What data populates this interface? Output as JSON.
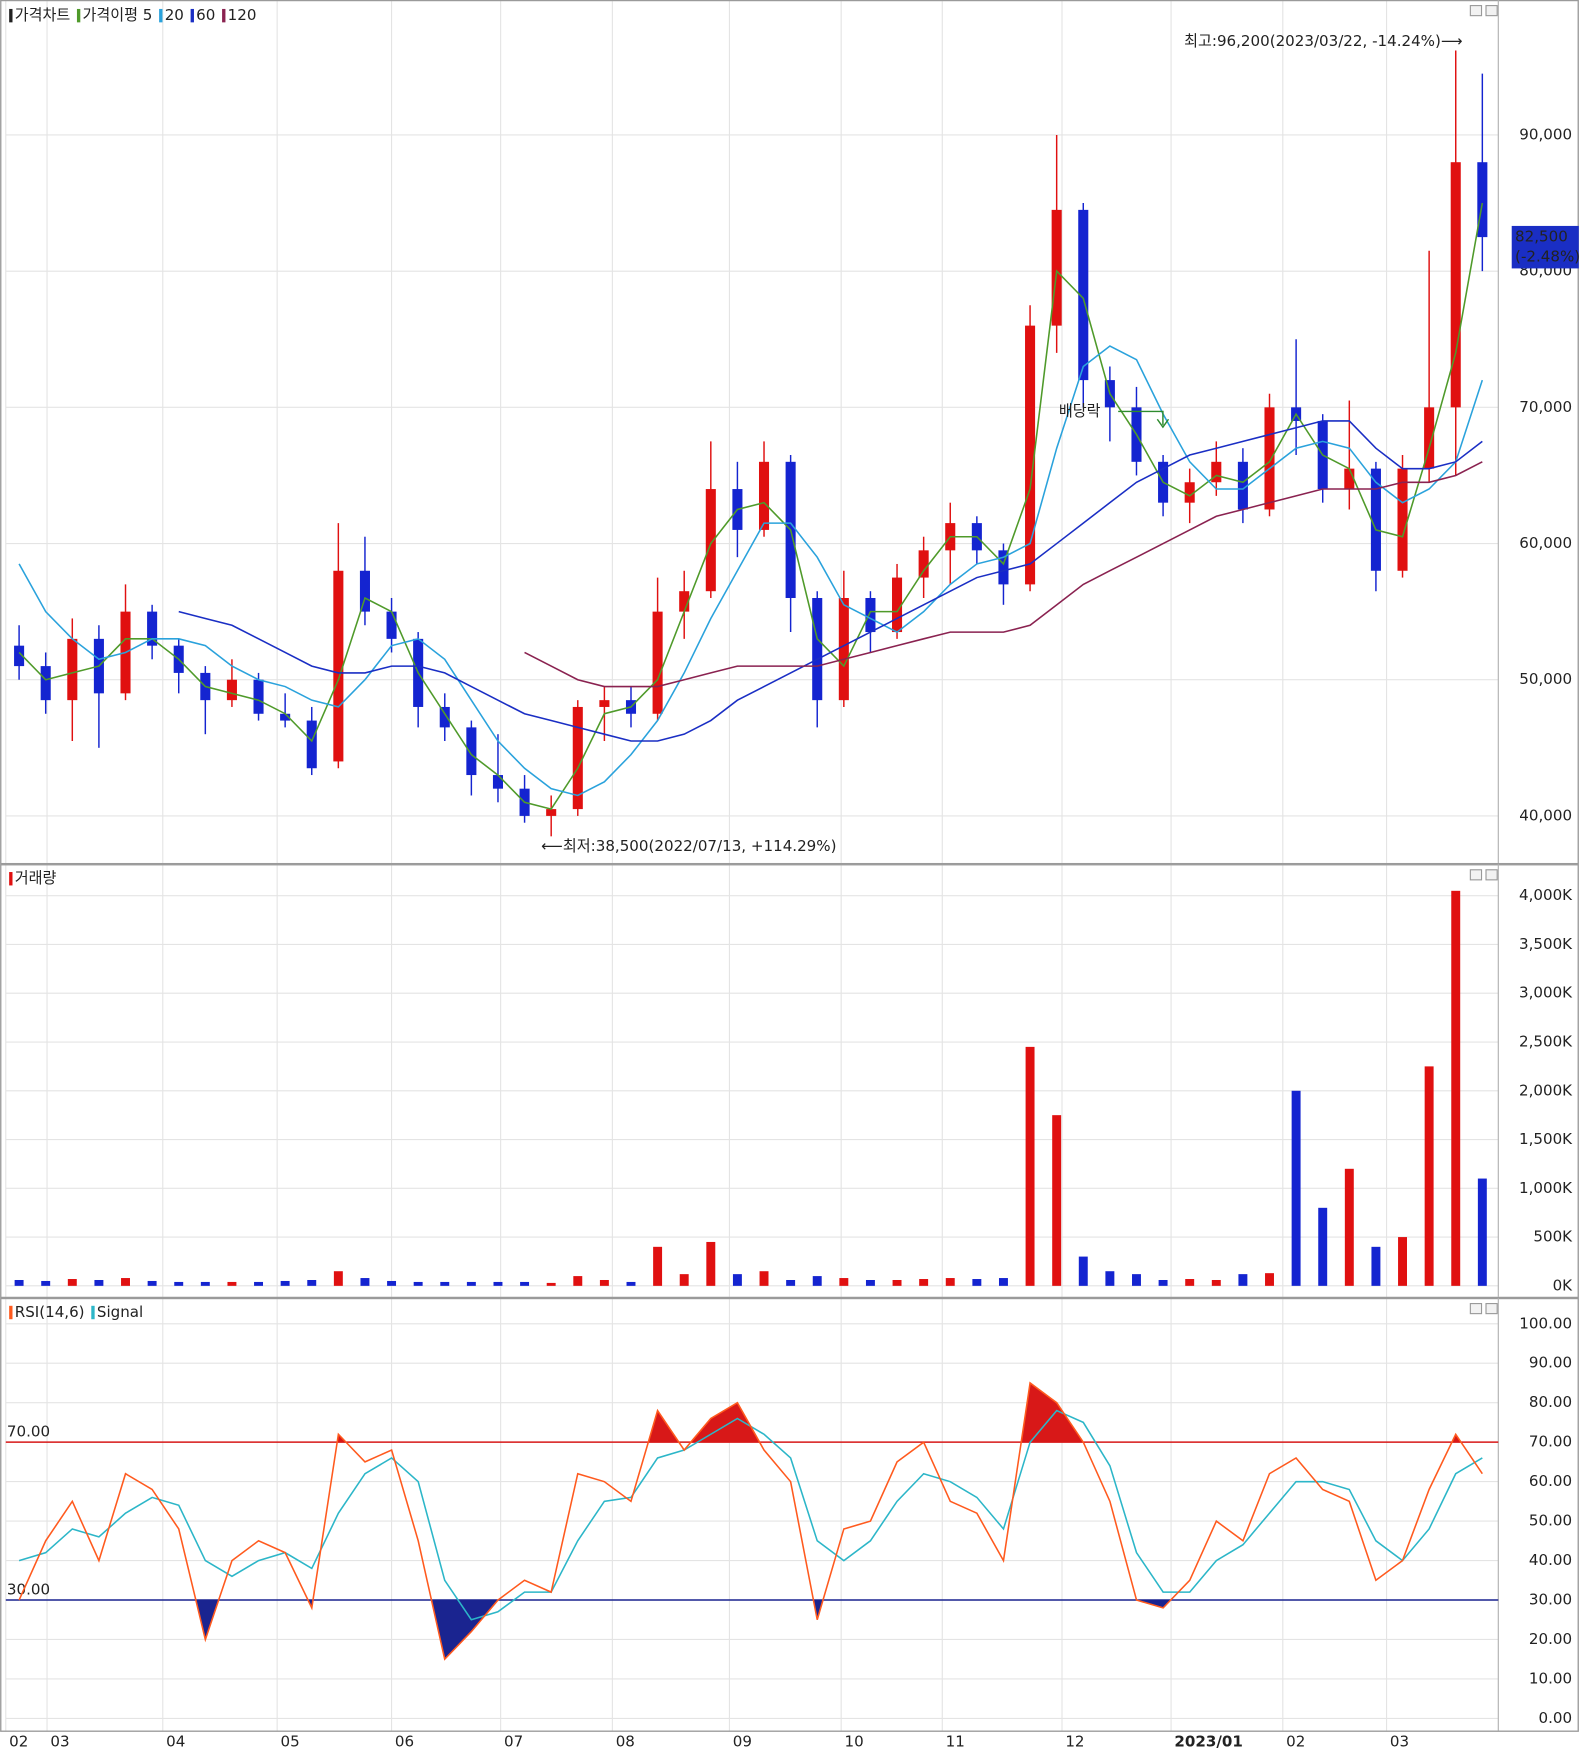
{
  "chart_data": [
    {
      "type": "candlestick",
      "legend_title": "가격차트",
      "xlim": [
        -0.5,
        55.6
      ],
      "ylim": [
        36700,
        99500
      ],
      "yticks": [
        {
          "value": 40000,
          "label": "40,000"
        },
        {
          "value": 50000,
          "label": "50,000"
        },
        {
          "value": 60000,
          "label": "60,000"
        },
        {
          "value": 70000,
          "label": "70,000"
        },
        {
          "value": 80000,
          "label": "80,000"
        },
        {
          "value": 90000,
          "label": "90,000"
        }
      ],
      "up_color": "#e01010",
      "down_color": "#1424d0",
      "open": [
        52500,
        51000,
        48500,
        53000,
        49000,
        55000,
        52500,
        50500,
        48500,
        50000,
        47500,
        47000,
        44000,
        58000,
        55000,
        53000,
        48000,
        46500,
        43000,
        42000,
        40000,
        40500,
        48000,
        48500,
        47500,
        55000,
        56500,
        64000,
        61000,
        66000,
        56000,
        48500,
        56000,
        53500,
        57500,
        59500,
        61500,
        59500,
        57000,
        76000,
        84500,
        72000,
        70000,
        66000,
        63000,
        64500,
        66000,
        62500,
        70000,
        69000,
        64000,
        65500,
        58000,
        65500,
        70000,
        88000
      ],
      "high": [
        54000,
        52000,
        54500,
        54000,
        57000,
        55500,
        53000,
        51000,
        51500,
        50500,
        49000,
        48000,
        61500,
        60500,
        56000,
        53500,
        49000,
        47000,
        46000,
        43000,
        41500,
        48500,
        49500,
        49500,
        57500,
        58000,
        67500,
        66000,
        67500,
        66500,
        56500,
        58000,
        56500,
        58500,
        60500,
        63000,
        62000,
        60000,
        77500,
        90000,
        85000,
        73000,
        71500,
        66500,
        65500,
        67500,
        67000,
        71000,
        75000,
        69500,
        70500,
        66000,
        66500,
        81500,
        96200,
        94500
      ],
      "low": [
        50000,
        47500,
        45500,
        45000,
        48500,
        51500,
        49000,
        46000,
        48000,
        47000,
        46500,
        43000,
        43500,
        54000,
        52000,
        46500,
        45500,
        41500,
        41000,
        39500,
        38500,
        40000,
        45500,
        46500,
        47000,
        53000,
        56000,
        59000,
        60500,
        53500,
        46500,
        48000,
        52000,
        53000,
        56000,
        57000,
        58500,
        55500,
        56500,
        74000,
        70000,
        67500,
        65000,
        62000,
        61500,
        63500,
        61500,
        62000,
        66500,
        63000,
        62500,
        56500,
        57500,
        64500,
        65000,
        80000
      ],
      "close": [
        51000,
        48500,
        53000,
        49000,
        55000,
        52500,
        50500,
        48500,
        50000,
        47500,
        47000,
        43500,
        58000,
        55000,
        53000,
        48000,
        46500,
        43000,
        42000,
        40000,
        40500,
        48000,
        48500,
        47500,
        55000,
        56500,
        64000,
        61000,
        66000,
        56000,
        48500,
        56000,
        53500,
        57500,
        59500,
        61500,
        59500,
        57000,
        76000,
        84500,
        72000,
        70000,
        66000,
        63000,
        64500,
        66000,
        62500,
        70000,
        69000,
        64000,
        65500,
        58000,
        65500,
        70000,
        88000,
        82500
      ],
      "series": [
        {
          "name": "가격이평 5",
          "color": "#4f9a2a",
          "values": [
            52000,
            50000,
            50500,
            51000,
            53000,
            53000,
            51500,
            49500,
            49000,
            48500,
            47500,
            45500,
            50000,
            56000,
            55000,
            50500,
            47500,
            44500,
            43000,
            41000,
            40500,
            43500,
            47500,
            48000,
            50000,
            55000,
            60000,
            62500,
            63000,
            61000,
            53000,
            51000,
            55000,
            55000,
            58000,
            60500,
            60500,
            58500,
            64000,
            80000,
            78000,
            71000,
            68000,
            64500,
            63500,
            65000,
            64500,
            66000,
            69500,
            66500,
            65500,
            61000,
            60500,
            67000,
            74000,
            85000
          ]
        },
        {
          "name": "20",
          "color": "#2aa2dc",
          "values": [
            58500,
            55000,
            53000,
            51500,
            52000,
            53000,
            53000,
            52500,
            51000,
            50000,
            49500,
            48500,
            48000,
            50000,
            52500,
            53000,
            51500,
            48500,
            45500,
            43500,
            42000,
            41500,
            42500,
            44500,
            47000,
            50500,
            54500,
            58000,
            61500,
            61500,
            59000,
            55500,
            54500,
            53500,
            55000,
            57000,
            58500,
            59000,
            60000,
            67000,
            73000,
            74500,
            73500,
            69500,
            66000,
            64000,
            64000,
            65500,
            67000,
            67500,
            67000,
            64500,
            63000,
            64000,
            66000,
            72000
          ]
        },
        {
          "name": "60",
          "color": "#1a2ec4",
          "values": [
            null,
            null,
            null,
            null,
            null,
            null,
            55000,
            54500,
            54000,
            53000,
            52000,
            51000,
            50500,
            50500,
            51000,
            51000,
            50500,
            49500,
            48500,
            47500,
            47000,
            46500,
            46000,
            45500,
            45500,
            46000,
            47000,
            48500,
            49500,
            50500,
            51500,
            52500,
            53500,
            54500,
            55500,
            56500,
            57500,
            58000,
            58500,
            60000,
            61500,
            63000,
            64500,
            65500,
            66500,
            67000,
            67500,
            68000,
            68500,
            69000,
            69000,
            67000,
            65500,
            65500,
            66000,
            67500
          ]
        },
        {
          "name": "120",
          "color": "#8a2250",
          "values": [
            null,
            null,
            null,
            null,
            null,
            null,
            null,
            null,
            null,
            null,
            null,
            null,
            null,
            null,
            null,
            null,
            null,
            null,
            null,
            52000,
            51000,
            50000,
            49500,
            49500,
            49500,
            50000,
            50500,
            51000,
            51000,
            51000,
            51000,
            51500,
            52000,
            52500,
            53000,
            53500,
            53500,
            53500,
            54000,
            55500,
            57000,
            58000,
            59000,
            60000,
            61000,
            62000,
            62500,
            63000,
            63500,
            64000,
            64000,
            64000,
            64500,
            64500,
            65000,
            66000
          ]
        }
      ],
      "high_annotation": "최고:96,200(2023/03/22, -14.24%)⟶",
      "low_annotation": "⟵최저:38,500(2022/07/13, +114.29%)",
      "event_annotation": "배당락",
      "last_label": "82,500",
      "last_change": "(-2.48%)"
    },
    {
      "type": "bar",
      "legend_title": "거래량",
      "xlim": [
        -0.5,
        55.6
      ],
      "ylim": [
        -90,
        4300
      ],
      "yticks": [
        {
          "value": 0,
          "label": "0K"
        },
        {
          "value": 500,
          "label": "500K"
        },
        {
          "value": 1000,
          "label": "1,000K"
        },
        {
          "value": 1500,
          "label": "1,500K"
        },
        {
          "value": 2000,
          "label": "2,000K"
        },
        {
          "value": 2500,
          "label": "2,500K"
        },
        {
          "value": 3000,
          "label": "3,000K"
        },
        {
          "value": 3500,
          "label": "3,500K"
        },
        {
          "value": 4000,
          "label": "4,000K"
        }
      ],
      "values": [
        60,
        50,
        70,
        60,
        80,
        50,
        40,
        40,
        40,
        40,
        50,
        60,
        150,
        80,
        50,
        40,
        40,
        40,
        40,
        40,
        30,
        100,
        60,
        40,
        400,
        120,
        450,
        120,
        150,
        60,
        100,
        80,
        60,
        60,
        70,
        80,
        70,
        80,
        2450,
        1750,
        300,
        150,
        120,
        60,
        70,
        60,
        120,
        130,
        2000,
        800,
        1200,
        400,
        500,
        2250,
        4050,
        1100
      ]
    },
    {
      "type": "line",
      "xlim": [
        -0.5,
        55.6
      ],
      "ylim": [
        -3.1,
        105.4
      ],
      "yticks": [
        {
          "value": 0,
          "label": "0.00"
        },
        {
          "value": 10,
          "label": "10.00"
        },
        {
          "value": 20,
          "label": "20.00"
        },
        {
          "value": 30,
          "label": "30.00"
        },
        {
          "value": 40,
          "label": "40.00"
        },
        {
          "value": 50,
          "label": "50.00"
        },
        {
          "value": 60,
          "label": "60.00"
        },
        {
          "value": 70,
          "label": "70.00"
        },
        {
          "value": 80,
          "label": "80.00"
        },
        {
          "value": 90,
          "label": "90.00"
        },
        {
          "value": 100,
          "label": "100.00"
        }
      ],
      "levels": [
        {
          "value": 70,
          "label": "70.00",
          "color": "#d81818"
        },
        {
          "value": 30,
          "label": "30.00",
          "color": "#1a2490"
        }
      ],
      "series": [
        {
          "name": "RSI(14,6)",
          "color": "#ff5a1e",
          "values": [
            30,
            45,
            55,
            40,
            62,
            58,
            48,
            20,
            40,
            45,
            42,
            28,
            72,
            65,
            68,
            45,
            15,
            22,
            30,
            35,
            32,
            62,
            60,
            55,
            78,
            68,
            76,
            80,
            68,
            60,
            25,
            48,
            50,
            65,
            70,
            55,
            52,
            40,
            85,
            80,
            70,
            55,
            30,
            28,
            35,
            50,
            45,
            62,
            66,
            58,
            55,
            35,
            40,
            58,
            72,
            62
          ]
        },
        {
          "name": "Signal",
          "color": "#2cb6c8",
          "values": [
            40,
            42,
            48,
            46,
            52,
            56,
            54,
            40,
            36,
            40,
            42,
            38,
            52,
            62,
            66,
            60,
            35,
            25,
            27,
            32,
            32,
            45,
            55,
            56,
            66,
            68,
            72,
            76,
            72,
            66,
            45,
            40,
            45,
            55,
            62,
            60,
            56,
            48,
            70,
            78,
            75,
            64,
            42,
            32,
            32,
            40,
            44,
            52,
            60,
            60,
            58,
            45,
            40,
            48,
            62,
            66
          ]
        }
      ],
      "xticks": [
        {
          "value": -0.5,
          "label": "02"
        },
        {
          "value": 1.05,
          "label": "03"
        },
        {
          "value": 5.4,
          "label": "04"
        },
        {
          "value": 9.7,
          "label": "05"
        },
        {
          "value": 14.0,
          "label": "06"
        },
        {
          "value": 18.1,
          "label": "07"
        },
        {
          "value": 22.3,
          "label": "08"
        },
        {
          "value": 26.7,
          "label": "09"
        },
        {
          "value": 30.9,
          "label": "10"
        },
        {
          "value": 34.7,
          "label": "11"
        },
        {
          "value": 39.2,
          "label": "12"
        },
        {
          "value": 43.3,
          "label": "2023/01"
        },
        {
          "value": 47.5,
          "label": "02"
        },
        {
          "value": 51.4,
          "label": "03"
        }
      ]
    }
  ]
}
